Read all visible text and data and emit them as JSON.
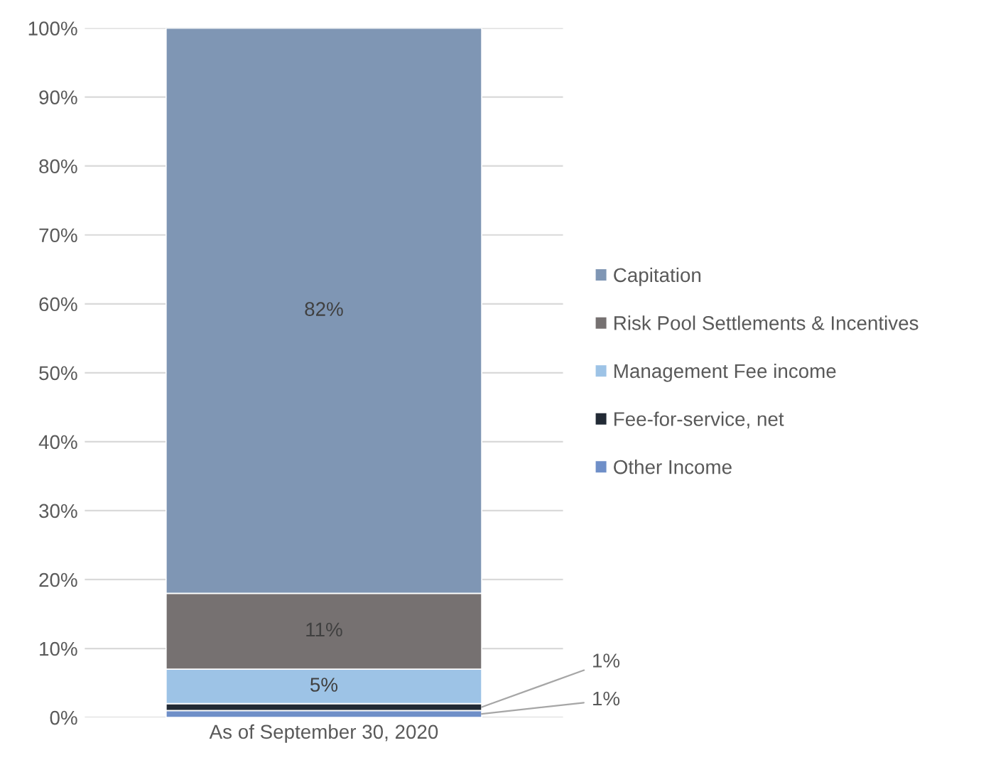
{
  "chart_data": {
    "type": "bar",
    "stacked": true,
    "categories": [
      "As of September 30, 2020"
    ],
    "series": [
      {
        "name": "Other Income",
        "color": "#6f8fc8",
        "values": [
          1
        ]
      },
      {
        "name": "Fee-for-service, net",
        "color": "#222a35",
        "values": [
          1
        ]
      },
      {
        "name": "Management Fee income",
        "color": "#9dc3e6",
        "values": [
          5
        ]
      },
      {
        "name": "Risk Pool Settlements & Incentives",
        "color": "#767171",
        "values": [
          11
        ]
      },
      {
        "name": "Capitation",
        "color": "#7f96b4",
        "values": [
          82
        ]
      }
    ],
    "ylim": [
      0,
      100
    ],
    "yticks": [
      {
        "value": 0,
        "label": "0%"
      },
      {
        "value": 10,
        "label": "10%"
      },
      {
        "value": 20,
        "label": "20%"
      },
      {
        "value": 30,
        "label": "30%"
      },
      {
        "value": 40,
        "label": "40%"
      },
      {
        "value": 50,
        "label": "50%"
      },
      {
        "value": 60,
        "label": "60%"
      },
      {
        "value": 70,
        "label": "70%"
      },
      {
        "value": 80,
        "label": "80%"
      },
      {
        "value": 90,
        "label": "90%"
      },
      {
        "value": 100,
        "label": "100%"
      }
    ],
    "grid": "y",
    "legend": "right",
    "value_labels": [
      [
        "1%"
      ],
      [
        "1%"
      ],
      [
        "5%"
      ],
      [
        "11%"
      ],
      [
        "82%"
      ]
    ]
  }
}
